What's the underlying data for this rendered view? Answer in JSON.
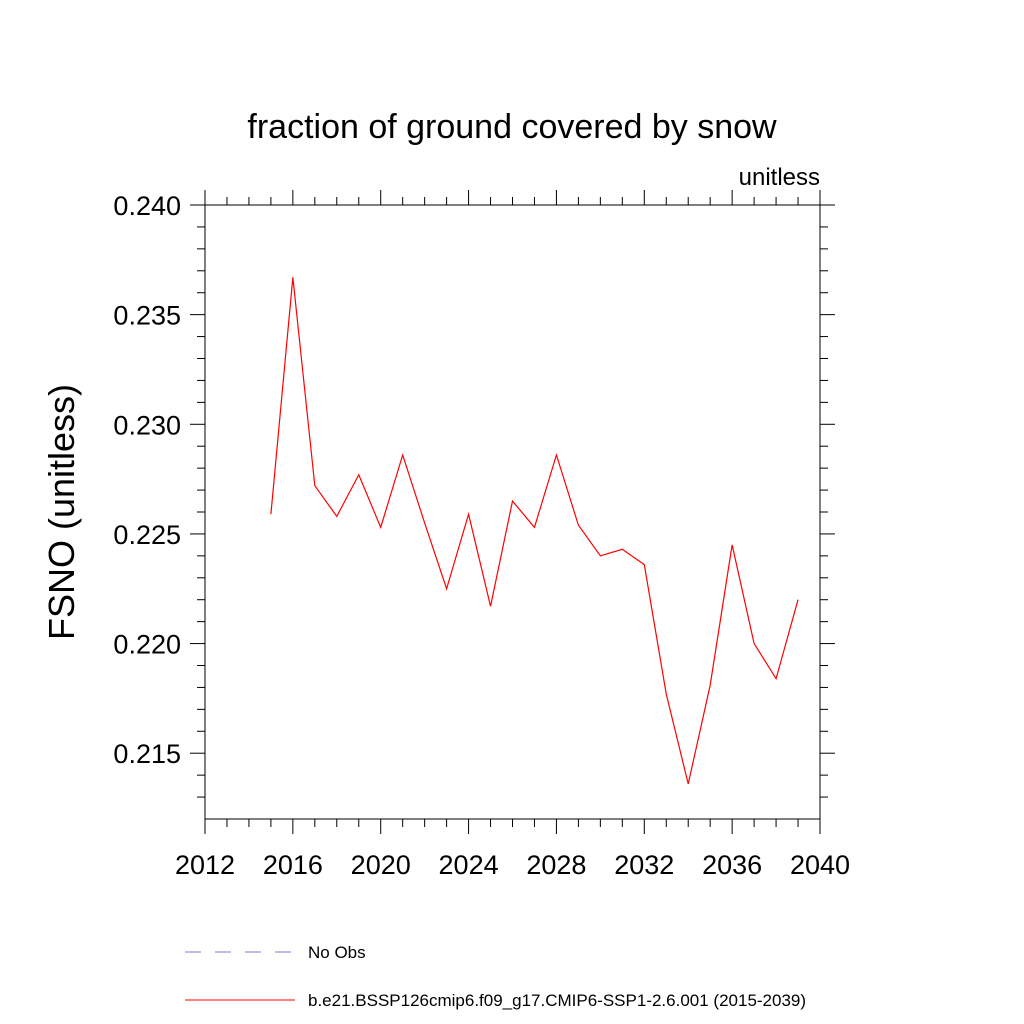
{
  "chart_data": {
    "type": "line",
    "title": "fraction of ground covered by snow",
    "units_label": "unitless",
    "xlabel": "",
    "ylabel": "FSNO  (unitless)",
    "xlim": [
      2012,
      2040
    ],
    "ylim": [
      0.212,
      0.24
    ],
    "x_ticks": [
      2012,
      2016,
      2020,
      2024,
      2028,
      2032,
      2036,
      2040
    ],
    "x_tick_labels": [
      "2012",
      "2016",
      "2020",
      "2024",
      "2028",
      "2032",
      "2036",
      "2040"
    ],
    "y_ticks": [
      0.215,
      0.22,
      0.225,
      0.23,
      0.235,
      0.24
    ],
    "y_tick_labels": [
      "0.215",
      "0.220",
      "0.225",
      "0.230",
      "0.235",
      "0.240"
    ],
    "grid": false,
    "legend_position": "bottom",
    "series": [
      {
        "name": "b.e21.BSSP126cmip6.f09_g17.CMIP6-SSP1-2.6.001 (2015-2039)",
        "color": "#ff0000",
        "style": "solid",
        "x": [
          2015,
          2016,
          2017,
          2018,
          2019,
          2020,
          2021,
          2022,
          2023,
          2024,
          2025,
          2026,
          2027,
          2028,
          2029,
          2030,
          2031,
          2032,
          2033,
          2034,
          2035,
          2036,
          2037,
          2038,
          2039
        ],
        "y": [
          0.2259,
          0.2367,
          0.2272,
          0.2258,
          0.2277,
          0.2253,
          0.2286,
          0.2255,
          0.2225,
          0.2259,
          0.2217,
          0.2265,
          0.2253,
          0.2286,
          0.2254,
          0.224,
          0.2243,
          0.2236,
          0.2177,
          0.2136,
          0.2181,
          0.2245,
          0.22,
          0.2184,
          0.222
        ]
      }
    ],
    "legend": [
      {
        "label": "No Obs",
        "color": "#7b7bd4",
        "style": "dashed"
      },
      {
        "label": "b.e21.BSSP126cmip6.f09_g17.CMIP6-SSP1-2.6.001 (2015-2039)",
        "color": "#ff0000",
        "style": "solid"
      }
    ]
  }
}
